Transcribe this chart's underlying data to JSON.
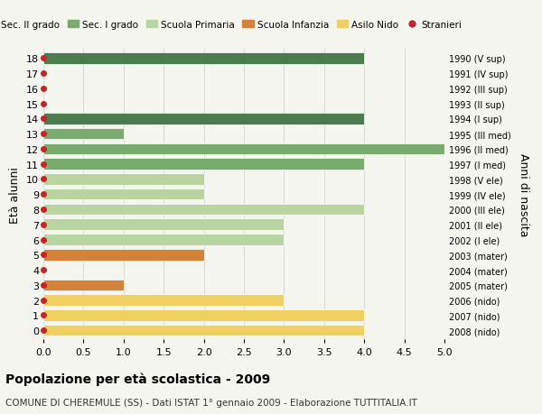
{
  "ages": [
    18,
    17,
    16,
    15,
    14,
    13,
    12,
    11,
    10,
    9,
    8,
    7,
    6,
    5,
    4,
    3,
    2,
    1,
    0
  ],
  "right_labels": [
    "1990 (V sup)",
    "1991 (IV sup)",
    "1992 (III sup)",
    "1993 (II sup)",
    "1994 (I sup)",
    "1995 (III med)",
    "1996 (II med)",
    "1997 (I med)",
    "1998 (V ele)",
    "1999 (IV ele)",
    "2000 (III ele)",
    "2001 (II ele)",
    "2002 (I ele)",
    "2003 (mater)",
    "2004 (mater)",
    "2005 (mater)",
    "2006 (nido)",
    "2007 (nido)",
    "2008 (nido)"
  ],
  "values": [
    4,
    0,
    0,
    0,
    4,
    1,
    5,
    4,
    2,
    2,
    4,
    3,
    3,
    2,
    0,
    1,
    3,
    4,
    4
  ],
  "colors": [
    "#4a7c4e",
    "#4a7c4e",
    "#4a7c4e",
    "#4a7c4e",
    "#4a7c4e",
    "#7aab6e",
    "#7aab6e",
    "#7aab6e",
    "#b8d4a0",
    "#b8d4a0",
    "#b8d4a0",
    "#b8d4a0",
    "#b8d4a0",
    "#d4823a",
    "#d4823a",
    "#d4823a",
    "#f0d060",
    "#f0d060",
    "#f0d060"
  ],
  "legend_labels": [
    "Sec. II grado",
    "Sec. I grado",
    "Scuola Primaria",
    "Scuola Infanzia",
    "Asilo Nido",
    "Stranieri"
  ],
  "legend_colors": [
    "#4a7c4e",
    "#7aab6e",
    "#b8d4a0",
    "#d4823a",
    "#f0d060",
    "#cc2222"
  ],
  "dot_color": "#cc2222",
  "ylabel": "Età alunni",
  "right_ylabel": "Anni di nascita",
  "title": "Popolazione per età scolastica - 2009",
  "subtitle": "COMUNE DI CHEREMULE (SS) - Dati ISTAT 1° gennaio 2009 - Elaborazione TUTTITALIA.IT",
  "xlim": [
    0,
    5.0
  ],
  "background_color": "#f5f5f0",
  "grid_color": "#cccccc"
}
